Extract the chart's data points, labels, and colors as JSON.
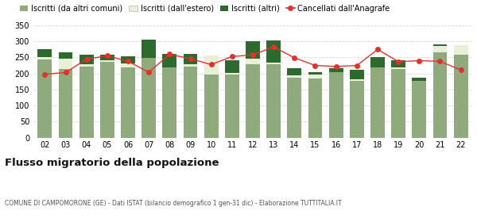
{
  "years": [
    "02",
    "03",
    "04",
    "05",
    "06",
    "07",
    "08",
    "09",
    "10",
    "11",
    "12",
    "13",
    "14",
    "15",
    "16",
    "17",
    "18",
    "19",
    "20",
    "21",
    "22"
  ],
  "iscritti_altri_comuni": [
    243,
    215,
    222,
    237,
    218,
    248,
    220,
    222,
    197,
    196,
    228,
    228,
    187,
    185,
    205,
    178,
    220,
    215,
    177,
    265,
    258
  ],
  "iscritti_estero": [
    8,
    32,
    8,
    5,
    14,
    0,
    0,
    6,
    60,
    5,
    18,
    5,
    8,
    12,
    0,
    5,
    0,
    5,
    0,
    22,
    30
  ],
  "iscritti_altri": [
    25,
    18,
    28,
    16,
    22,
    57,
    40,
    33,
    0,
    40,
    55,
    70,
    22,
    8,
    12,
    28,
    30,
    22,
    10,
    5,
    0
  ],
  "cancellati": [
    198,
    203,
    245,
    255,
    238,
    204,
    260,
    246,
    228,
    253,
    258,
    283,
    249,
    225,
    222,
    225,
    275,
    237,
    240,
    238,
    211
  ],
  "color_altri_comuni": "#8faa7c",
  "color_estero": "#e8f0d8",
  "color_altri": "#2d6a2d",
  "color_cancellati": "#e8302a",
  "ylim": [
    0,
    360
  ],
  "yticks": [
    0,
    50,
    100,
    150,
    200,
    250,
    300,
    350
  ],
  "title": "Flusso migratorio della popolazione",
  "subtitle": "COMUNE DI CAMPOMORONE (GE) - Dati ISTAT (bilancio demografico 1 gen-31 dic) - Elaborazione TUTTITALIA.IT",
  "legend_labels": [
    "Iscritti (da altri comuni)",
    "Iscritti (dall'estero)",
    "Iscritti (altri)",
    "Cancellati dall'Anagrafe"
  ],
  "bg_color": "#ffffff",
  "grid_color": "#d8d8d8"
}
